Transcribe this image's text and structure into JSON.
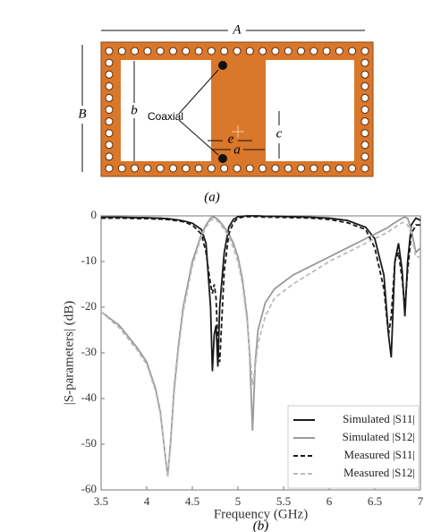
{
  "diagram": {
    "labels": {
      "A": "A",
      "B": "B",
      "b": "b",
      "e": "e",
      "a": "a",
      "c": "c",
      "coaxial": "Coaxial"
    },
    "caption": "(a)"
  },
  "chart_data": {
    "type": "line",
    "caption": "(b)",
    "xlabel": "Frequency (GHz)",
    "ylabel": "|S-parameters| (dB)",
    "x": [
      3.5,
      3.7,
      3.9,
      4.0,
      4.1,
      4.15,
      4.2,
      4.23,
      4.26,
      4.3,
      4.35,
      4.4,
      4.5,
      4.6,
      4.65,
      4.7,
      4.72,
      4.74,
      4.76,
      4.78,
      4.8,
      4.85,
      4.9,
      4.95,
      5.0,
      5.05,
      5.1,
      5.13,
      5.16,
      5.19,
      5.22,
      5.3,
      5.4,
      5.6,
      5.8,
      6.0,
      6.2,
      6.4,
      6.5,
      6.6,
      6.65,
      6.68,
      6.72,
      6.76,
      6.8,
      6.83,
      6.86,
      6.9,
      6.95,
      7.0
    ],
    "series": [
      {
        "name": "Simulated |S11|",
        "color": "#1a1a1a",
        "style": "solid",
        "values": [
          -0.3,
          -0.3,
          -0.4,
          -0.4,
          -0.5,
          -0.5,
          -0.6,
          -0.6,
          -0.7,
          -0.8,
          -0.9,
          -1.1,
          -1.6,
          -3,
          -6,
          -20,
          -34,
          -26,
          -24,
          -33,
          -20,
          -8,
          -2.5,
          -0.8,
          -0.2,
          -0.1,
          0,
          0,
          0,
          0,
          0,
          -0.1,
          -0.1,
          -0.2,
          -0.3,
          -0.5,
          -1,
          -2.5,
          -5,
          -13,
          -26,
          -31,
          -10,
          -6,
          -12,
          -22,
          -10,
          -2,
          -0.5,
          -1
        ]
      },
      {
        "name": "Simulated |S12|",
        "color": "#999999",
        "style": "solid",
        "values": [
          -21,
          -24,
          -29,
          -32,
          -38,
          -43,
          -52,
          -57,
          -50,
          -38,
          -28,
          -20,
          -10,
          -4,
          -2,
          -0.5,
          -0.3,
          -0.3,
          -0.5,
          -0.8,
          -1.2,
          -2.5,
          -4,
          -6,
          -9,
          -14,
          -22,
          -31,
          -47,
          -32,
          -25,
          -19,
          -16,
          -13,
          -11,
          -9,
          -7,
          -5,
          -4,
          -3,
          -2.5,
          -2,
          -1.5,
          -1,
          -0.5,
          -0.3,
          -0.5,
          -3,
          -8,
          -7
        ]
      },
      {
        "name": "Measured |S11|",
        "color": "#1a1a1a",
        "style": "dashed",
        "values": [
          -0.5,
          -0.5,
          -0.6,
          -0.6,
          -0.7,
          -0.7,
          -0.8,
          -0.8,
          -0.9,
          -1,
          -1.1,
          -1.3,
          -2,
          -4,
          -8,
          -15,
          -17,
          -15,
          -18,
          -28,
          -32,
          -12,
          -4,
          -1.5,
          -0.5,
          -0.3,
          -0.2,
          -0.2,
          -0.2,
          -0.2,
          -0.2,
          -0.3,
          -0.3,
          -0.4,
          -0.5,
          -0.8,
          -1.5,
          -3,
          -7,
          -16,
          -26,
          -22,
          -10,
          -8,
          -14,
          -20,
          -12,
          -4,
          -2,
          -2
        ]
      },
      {
        "name": "Measured |S12|",
        "color": "#bbbbbb",
        "style": "dashed",
        "values": [
          -21,
          -24.5,
          -29.5,
          -32.5,
          -38.5,
          -43.5,
          -52,
          -57,
          -51,
          -39,
          -29,
          -21,
          -11,
          -4.5,
          -2.5,
          -1,
          -0.8,
          -0.8,
          -1,
          -1.2,
          -1.6,
          -3,
          -4.5,
          -7,
          -10,
          -15,
          -23,
          -30,
          -37,
          -33,
          -28,
          -22,
          -18,
          -15,
          -12.5,
          -10,
          -8,
          -6,
          -5,
          -4,
          -3.5,
          -3,
          -2.5,
          -2,
          -1.5,
          -1.5,
          -2,
          -4,
          -9,
          -9
        ]
      }
    ],
    "xlim": [
      3.5,
      7
    ],
    "ylim": [
      -60,
      0
    ],
    "xticks": [
      3.5,
      4,
      4.5,
      5,
      5.5,
      6,
      6.5,
      7
    ],
    "yticks": [
      0,
      -10,
      -20,
      -30,
      -40,
      -50,
      -60
    ],
    "legend": "lower right"
  }
}
